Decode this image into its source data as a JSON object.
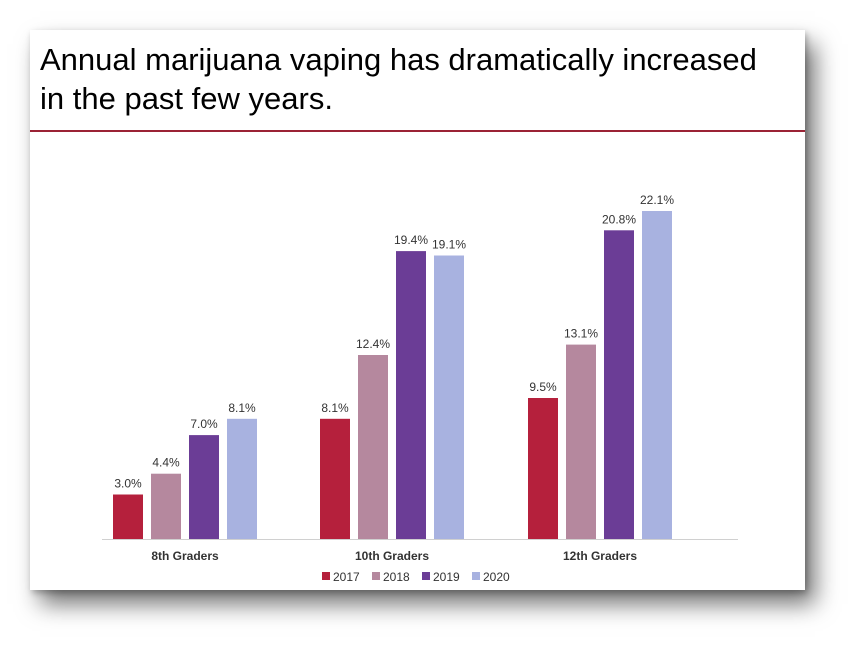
{
  "slide": {
    "title": "Annual marijuana vaping has dramatically increased in the past few years.",
    "rule_color": "#9b2335"
  },
  "chart_data": {
    "type": "bar",
    "categories": [
      "8th Graders",
      "10th Graders",
      "12th Graders"
    ],
    "series": [
      {
        "name": "2017",
        "color": "#b5203c",
        "values": [
          3.0,
          8.1,
          9.5
        ],
        "labels": [
          "3.0%",
          "8.1%",
          "9.5%"
        ]
      },
      {
        "name": "2018",
        "color": "#b5889e",
        "values": [
          4.4,
          12.4,
          13.1
        ],
        "labels": [
          "4.4%",
          "12.4%",
          "13.1%"
        ]
      },
      {
        "name": "2019",
        "color": "#6b3d96",
        "values": [
          7.0,
          19.4,
          20.8
        ],
        "labels": [
          "7.0%",
          "19.4%",
          "20.8%"
        ]
      },
      {
        "name": "2020",
        "color": "#a8b2e0",
        "values": [
          8.1,
          19.1,
          22.1
        ],
        "labels": [
          "8.1%",
          "19.1%",
          "22.1%"
        ]
      }
    ],
    "ylim": [
      0,
      22.1
    ],
    "grid": false,
    "legend_position": "bottom"
  }
}
